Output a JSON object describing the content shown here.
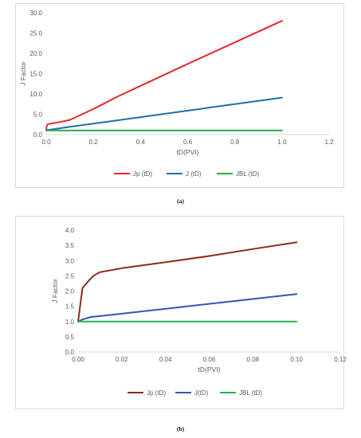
{
  "chart_data": [
    {
      "type": "line",
      "panel_caption": "(a)",
      "xlabel": "tD(PVI)",
      "ylabel": "J Factor",
      "xlim": [
        0,
        1.2
      ],
      "ylim": [
        0,
        30
      ],
      "xticks": [
        "0.0",
        "0.2",
        "0.4",
        "0.6",
        "0.8",
        "1.0",
        "1.2"
      ],
      "yticks": [
        "0.0",
        "5.0",
        "10.0",
        "15.0",
        "20.0",
        "25.0",
        "30.0"
      ],
      "xtick_values": [
        0,
        0.2,
        0.4,
        0.6,
        0.8,
        1.0,
        1.2
      ],
      "ytick_values": [
        0,
        5,
        10,
        15,
        20,
        25,
        30
      ],
      "grid": false,
      "legend_position": "bottom",
      "series": [
        {
          "name": "Jp (tD)",
          "color": "#e8262b",
          "x": [
            0,
            0.002,
            0.005,
            0.01,
            0.05,
            0.1,
            0.2,
            0.3,
            0.4,
            0.6,
            0.8,
            1.0
          ],
          "y": [
            1.0,
            2.1,
            2.45,
            2.6,
            3.0,
            3.6,
            6.3,
            9.3,
            12.0,
            17.4,
            22.7,
            28.0
          ]
        },
        {
          "name": "J (tD)",
          "color": "#1f6fa3",
          "x": [
            0,
            0.01,
            0.1,
            0.4,
            0.7,
            1.0
          ],
          "y": [
            1.0,
            1.15,
            1.9,
            4.3,
            6.7,
            9.1
          ]
        },
        {
          "name": "JBL (tD)",
          "color": "#21b04b",
          "x": [
            0,
            1.0
          ],
          "y": [
            1.0,
            1.0
          ]
        }
      ]
    },
    {
      "type": "line",
      "panel_caption": "(b)",
      "xlabel": "tD(PVI)",
      "ylabel": "J Factor",
      "xlim": [
        0,
        0.12
      ],
      "ylim": [
        0,
        4.0
      ],
      "xticks": [
        "0.00",
        "0.02",
        "0.04",
        "0.06",
        "0.08",
        "0.10",
        "0.12"
      ],
      "yticks": [
        "0.0",
        "0.5",
        "1.0",
        "1.5",
        "2.0",
        "2.5",
        "3.0",
        "3.5",
        "4.0"
      ],
      "xtick_values": [
        0,
        0.02,
        0.04,
        0.06,
        0.08,
        0.1,
        0.12
      ],
      "ytick_values": [
        0,
        0.5,
        1.0,
        1.5,
        2.0,
        2.5,
        3.0,
        3.5,
        4.0
      ],
      "grid": false,
      "legend_position": "bottom",
      "series": [
        {
          "name": "Jp (tD)",
          "color": "#8b2c17",
          "x": [
            0,
            0.002,
            0.005,
            0.007,
            0.01,
            0.02,
            0.04,
            0.06,
            0.08,
            0.1
          ],
          "y": [
            1.0,
            2.1,
            2.35,
            2.5,
            2.62,
            2.75,
            2.95,
            3.15,
            3.38,
            3.6
          ]
        },
        {
          "name": "J(tD)",
          "color": "#3355b5",
          "x": [
            0,
            0.002,
            0.006,
            0.01,
            0.04,
            0.07,
            0.1
          ],
          "y": [
            1.0,
            1.07,
            1.15,
            1.18,
            1.42,
            1.66,
            1.9
          ]
        },
        {
          "name": "JBL (tD)",
          "color": "#21b04b",
          "x": [
            0,
            0.1
          ],
          "y": [
            1.0,
            1.0
          ]
        }
      ]
    }
  ]
}
